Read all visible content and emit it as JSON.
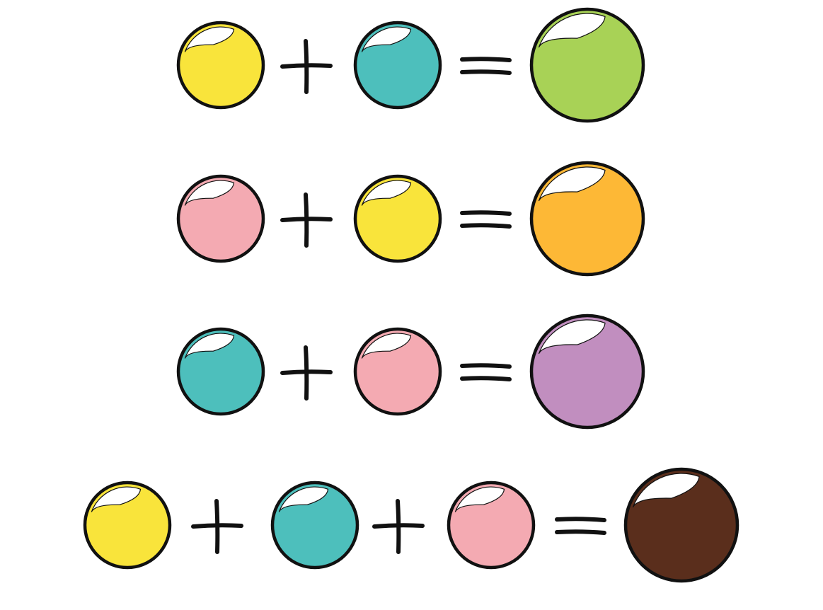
{
  "colors": {
    "yellow": "#F9E43B",
    "teal": "#4DBFBC",
    "pink": "#F4AAB2",
    "green": "#A8D256",
    "orange": "#FDB836",
    "purple": "#C18EBF",
    "brown": "#5A2E1C",
    "outline": "#111111",
    "highlight": "#ffffff"
  },
  "equations": [
    {
      "inputs": [
        "yellow",
        "teal"
      ],
      "result": "green"
    },
    {
      "inputs": [
        "pink",
        "yellow"
      ],
      "result": "orange"
    },
    {
      "inputs": [
        "teal",
        "pink"
      ],
      "result": "purple"
    },
    {
      "inputs": [
        "yellow",
        "teal",
        "pink"
      ],
      "result": "brown"
    }
  ]
}
